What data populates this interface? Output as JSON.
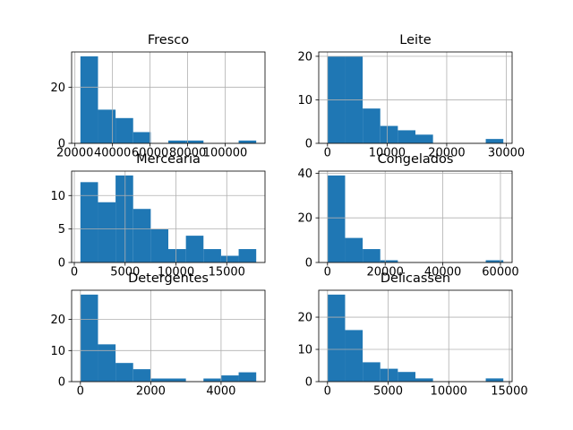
{
  "chart_data": [
    {
      "type": "bar",
      "title": "Fresco",
      "bins": [
        {
          "x0": 22925,
          "x1": 32285,
          "count": 31
        },
        {
          "x0": 32285,
          "x1": 41645,
          "count": 12
        },
        {
          "x0": 41645,
          "x1": 51005,
          "count": 9
        },
        {
          "x0": 51005,
          "x1": 60365,
          "count": 4
        },
        {
          "x0": 60365,
          "x1": 69725,
          "count": 0
        },
        {
          "x0": 69725,
          "x1": 79085,
          "count": 1
        },
        {
          "x0": 79085,
          "x1": 88445,
          "count": 1
        },
        {
          "x0": 88445,
          "x1": 97805,
          "count": 0
        },
        {
          "x0": 97805,
          "x1": 107165,
          "count": 0
        },
        {
          "x0": 107165,
          "x1": 116525,
          "count": 1
        }
      ],
      "xlim": [
        18245,
        121205
      ],
      "xticks": [
        20000,
        40000,
        60000,
        80000,
        100000
      ],
      "xtick_labels": [
        "20000",
        "40000",
        "60000",
        "80000",
        "100000"
      ],
      "ylim": [
        0,
        32.55
      ],
      "yticks": [
        0,
        20
      ],
      "ytick_labels": [
        "0",
        "20"
      ],
      "grid": true,
      "color": "#1f77b4"
    },
    {
      "type": "bar",
      "title": "Leite",
      "bins": [
        {
          "x0": 0,
          "x1": 2950,
          "count": 20
        },
        {
          "x0": 2950,
          "x1": 5900,
          "count": 20
        },
        {
          "x0": 5900,
          "x1": 8850,
          "count": 8
        },
        {
          "x0": 8850,
          "x1": 11800,
          "count": 4
        },
        {
          "x0": 11800,
          "x1": 14750,
          "count": 3
        },
        {
          "x0": 14750,
          "x1": 17700,
          "count": 2
        },
        {
          "x0": 17700,
          "x1": 20650,
          "count": 0
        },
        {
          "x0": 20650,
          "x1": 23600,
          "count": 0
        },
        {
          "x0": 23600,
          "x1": 26550,
          "count": 0
        },
        {
          "x0": 26550,
          "x1": 29500,
          "count": 1
        }
      ],
      "xlim": [
        -1475,
        30975
      ],
      "xticks": [
        0,
        10000,
        20000,
        30000
      ],
      "xtick_labels": [
        "0",
        "10000",
        "20000",
        "30000"
      ],
      "ylim": [
        0,
        21
      ],
      "yticks": [
        0,
        10,
        20
      ],
      "ytick_labels": [
        "0",
        "10",
        "20"
      ],
      "grid": true,
      "color": "#1f77b4"
    },
    {
      "type": "bar",
      "title": "Mercearia",
      "bins": [
        {
          "x0": 600,
          "x1": 2330,
          "count": 12
        },
        {
          "x0": 2330,
          "x1": 4060,
          "count": 9
        },
        {
          "x0": 4060,
          "x1": 5790,
          "count": 13
        },
        {
          "x0": 5790,
          "x1": 7520,
          "count": 8
        },
        {
          "x0": 7520,
          "x1": 9250,
          "count": 5
        },
        {
          "x0": 9250,
          "x1": 10980,
          "count": 2
        },
        {
          "x0": 10980,
          "x1": 12710,
          "count": 4
        },
        {
          "x0": 12710,
          "x1": 14440,
          "count": 2
        },
        {
          "x0": 14440,
          "x1": 16170,
          "count": 1
        },
        {
          "x0": 16170,
          "x1": 17900,
          "count": 2
        }
      ],
      "xlim": [
        -265,
        18765
      ],
      "xticks": [
        0,
        5000,
        10000,
        15000
      ],
      "xtick_labels": [
        "0",
        "5000",
        "10000",
        "15000"
      ],
      "ylim": [
        0,
        13.65
      ],
      "yticks": [
        0,
        5,
        10
      ],
      "ytick_labels": [
        "0",
        "5",
        "10"
      ],
      "grid": true,
      "color": "#1f77b4"
    },
    {
      "type": "bar",
      "title": "Congelados",
      "bins": [
        {
          "x0": 0,
          "x1": 6100,
          "count": 39
        },
        {
          "x0": 6100,
          "x1": 12200,
          "count": 11
        },
        {
          "x0": 12200,
          "x1": 18300,
          "count": 6
        },
        {
          "x0": 18300,
          "x1": 24400,
          "count": 1
        },
        {
          "x0": 24400,
          "x1": 30500,
          "count": 0
        },
        {
          "x0": 30500,
          "x1": 36600,
          "count": 0
        },
        {
          "x0": 36600,
          "x1": 42700,
          "count": 0
        },
        {
          "x0": 42700,
          "x1": 48800,
          "count": 0
        },
        {
          "x0": 48800,
          "x1": 54900,
          "count": 0
        },
        {
          "x0": 54900,
          "x1": 61000,
          "count": 1
        }
      ],
      "xlim": [
        -3050,
        64050
      ],
      "xticks": [
        0,
        20000,
        40000,
        60000
      ],
      "xtick_labels": [
        "0",
        "20000",
        "40000",
        "60000"
      ],
      "ylim": [
        0,
        40.95
      ],
      "yticks": [
        0,
        20,
        40
      ],
      "ytick_labels": [
        "0",
        "20",
        "40"
      ],
      "grid": true,
      "color": "#1f77b4"
    },
    {
      "type": "bar",
      "title": "Detergentes",
      "bins": [
        {
          "x0": 0,
          "x1": 500,
          "count": 28
        },
        {
          "x0": 500,
          "x1": 1000,
          "count": 12
        },
        {
          "x0": 1000,
          "x1": 1500,
          "count": 6
        },
        {
          "x0": 1500,
          "x1": 2000,
          "count": 4
        },
        {
          "x0": 2000,
          "x1": 2500,
          "count": 1
        },
        {
          "x0": 2500,
          "x1": 3000,
          "count": 1
        },
        {
          "x0": 3000,
          "x1": 3500,
          "count": 0
        },
        {
          "x0": 3500,
          "x1": 4000,
          "count": 1
        },
        {
          "x0": 4000,
          "x1": 4500,
          "count": 2
        },
        {
          "x0": 4500,
          "x1": 5000,
          "count": 3
        }
      ],
      "xlim": [
        -250,
        5250
      ],
      "xticks": [
        0,
        2000,
        4000
      ],
      "xtick_labels": [
        "0",
        "2000",
        "4000"
      ],
      "ylim": [
        0,
        29.4
      ],
      "yticks": [
        0,
        10,
        20
      ],
      "ytick_labels": [
        "0",
        "10",
        "20"
      ],
      "grid": true,
      "color": "#1f77b4"
    },
    {
      "type": "bar",
      "title": "Delicassen",
      "bins": [
        {
          "x0": 0,
          "x1": 1450,
          "count": 27
        },
        {
          "x0": 1450,
          "x1": 2900,
          "count": 16
        },
        {
          "x0": 2900,
          "x1": 4350,
          "count": 6
        },
        {
          "x0": 4350,
          "x1": 5800,
          "count": 4
        },
        {
          "x0": 5800,
          "x1": 7250,
          "count": 3
        },
        {
          "x0": 7250,
          "x1": 8700,
          "count": 1
        },
        {
          "x0": 8700,
          "x1": 10150,
          "count": 0
        },
        {
          "x0": 10150,
          "x1": 11600,
          "count": 0
        },
        {
          "x0": 11600,
          "x1": 13050,
          "count": 0
        },
        {
          "x0": 13050,
          "x1": 14500,
          "count": 1
        }
      ],
      "xlim": [
        -725,
        15225
      ],
      "xticks": [
        0,
        5000,
        10000,
        15000
      ],
      "xtick_labels": [
        "0",
        "5000",
        "10000",
        "15000"
      ],
      "ylim": [
        0,
        28.35
      ],
      "yticks": [
        0,
        10,
        20
      ],
      "ytick_labels": [
        "0",
        "10",
        "20"
      ],
      "grid": true,
      "color": "#1f77b4"
    }
  ]
}
